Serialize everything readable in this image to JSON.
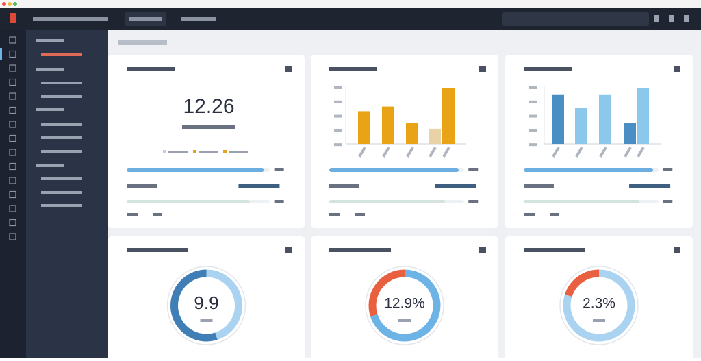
{
  "kpi": {
    "value": "12.26"
  },
  "charts": [
    {
      "type": "bar",
      "colors": [
        "#e8a317",
        "#e8a317",
        "#e8a317",
        "#e9d2a6",
        "#e8a317"
      ],
      "values": [
        56,
        64,
        36,
        26,
        96
      ],
      "ylim": [
        0,
        100
      ]
    },
    {
      "type": "bar",
      "colors": [
        "#4a8fc4",
        "#8cc8ec",
        "#8cc8ec",
        "#4a8fc4",
        "#8cc8ec"
      ],
      "values": [
        85,
        62,
        85,
        36,
        96
      ],
      "ylim": [
        0,
        100
      ]
    }
  ],
  "progress": [
    {
      "values": [
        96,
        86
      ],
      "xlim": [
        0,
        100
      ]
    },
    {
      "values": [
        96,
        86
      ],
      "xlim": [
        0,
        100
      ]
    },
    {
      "values": [
        96,
        86
      ],
      "xlim": [
        0,
        100
      ]
    }
  ],
  "gauges": [
    {
      "label": "9.9",
      "segments": [
        {
          "value": 55,
          "color": "#3f7fb5"
        },
        {
          "value": 45,
          "color": "#a9d3f0"
        }
      ]
    },
    {
      "label": "12.9%",
      "segments": [
        {
          "value": 30,
          "color": "#e8603f"
        },
        {
          "value": 70,
          "color": "#6db3e6"
        }
      ]
    },
    {
      "label": "2.3%",
      "segments": [
        {
          "value": 20,
          "color": "#e8603f"
        },
        {
          "value": 80,
          "color": "#a9d3f0"
        }
      ]
    }
  ]
}
